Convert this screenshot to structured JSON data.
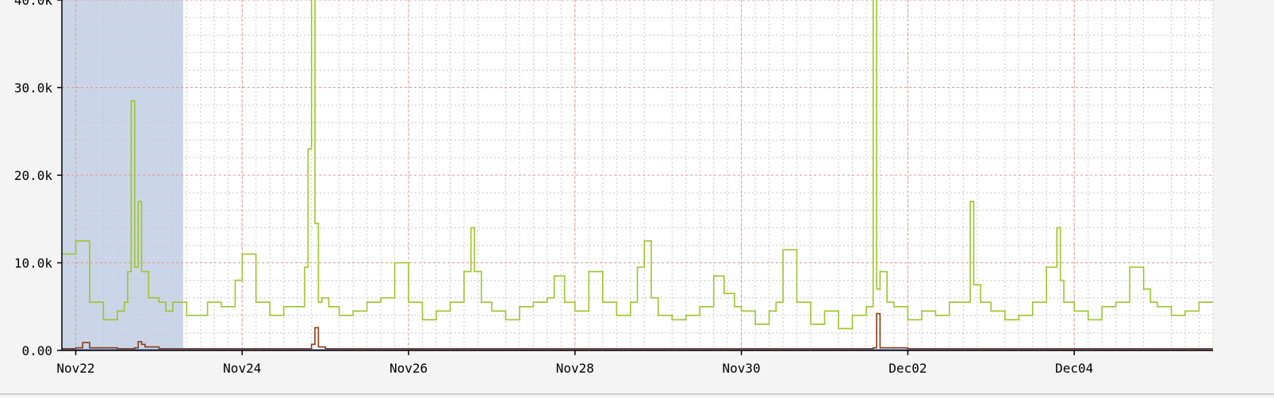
{
  "chart_data": {
    "type": "line",
    "title": "",
    "xlabel": "",
    "ylabel": "",
    "x_tick_labels": [
      "Nov22",
      "Nov24",
      "Nov26",
      "Nov28",
      "Nov30",
      "Dec02",
      "Dec04"
    ],
    "y_tick_labels": [
      "0.00",
      "10.0k",
      "20.0k",
      "30.0k",
      "40.0k"
    ],
    "xlim": [
      "Nov21 20:00",
      "Dec05 16:00"
    ],
    "ylim": [
      0,
      40000
    ],
    "grid": true,
    "highlighted_range": [
      "Nov21 20:00",
      "Nov23 07:00"
    ],
    "colors": {
      "series_green": "#9dc42b",
      "series_brown": "#8b3a10",
      "series_blue": "#4a6fc8",
      "highlight": "#cbd5e8",
      "major_grid": "#e89090",
      "minor_grid": "#c8c8c8"
    },
    "series": [
      {
        "color": "#9dc42b",
        "x": [
          "Nov21 20:00",
          "Nov22 00:00",
          "Nov22 04:00",
          "Nov22 08:00",
          "Nov22 12:00",
          "Nov22 14:00",
          "Nov22 15:00",
          "Nov22 16:00",
          "Nov22 17:00",
          "Nov22 18:00",
          "Nov22 19:00",
          "Nov22 21:00",
          "Nov23 00:00",
          "Nov23 02:00",
          "Nov23 04:00",
          "Nov23 08:00",
          "Nov23 11:00",
          "Nov23 14:00",
          "Nov23 18:00",
          "Nov23 22:00",
          "Nov24 00:00",
          "Nov24 04:00",
          "Nov24 08:00",
          "Nov24 12:00",
          "Nov24 16:00",
          "Nov24 18:00",
          "Nov24 19:00",
          "Nov24 20:00",
          "Nov24 21:00",
          "Nov24 22:00",
          "Nov24 23:00",
          "Nov25 01:00",
          "Nov25 04:00",
          "Nov25 08:00",
          "Nov25 12:00",
          "Nov25 16:00",
          "Nov25 20:00",
          "Nov26 00:00",
          "Nov26 04:00",
          "Nov26 08:00",
          "Nov26 12:00",
          "Nov26 16:00",
          "Nov26 18:00",
          "Nov26 19:00",
          "Nov26 21:00",
          "Nov27 00:00",
          "Nov27 04:00",
          "Nov27 08:00",
          "Nov27 12:00",
          "Nov27 16:00",
          "Nov27 18:00",
          "Nov27 21:00",
          "Nov28 00:00",
          "Nov28 04:00",
          "Nov28 08:00",
          "Nov28 12:00",
          "Nov28 16:00",
          "Nov28 18:00",
          "Nov28 20:00",
          "Nov28 22:00",
          "Nov29 00:00",
          "Nov29 04:00",
          "Nov29 08:00",
          "Nov29 12:00",
          "Nov29 16:00",
          "Nov29 19:00",
          "Nov29 22:00",
          "Nov30 00:00",
          "Nov30 04:00",
          "Nov30 08:00",
          "Nov30 10:00",
          "Nov30 12:00",
          "Nov30 16:00",
          "Nov30 20:00",
          "Dec01 00:00",
          "Dec01 04:00",
          "Dec01 08:00",
          "Dec01 12:00",
          "Dec01 14:00",
          "Dec01 15:00",
          "Dec01 16:00",
          "Dec01 18:00",
          "Dec01 20:00",
          "Dec02 00:00",
          "Dec02 04:00",
          "Dec02 08:00",
          "Dec02 12:00",
          "Dec02 16:00",
          "Dec02 18:00",
          "Dec02 19:00",
          "Dec02 21:00",
          "Dec03 00:00",
          "Dec03 04:00",
          "Dec03 08:00",
          "Dec03 12:00",
          "Dec03 16:00",
          "Dec03 19:00",
          "Dec03 20:00",
          "Dec03 21:00",
          "Dec04 00:00",
          "Dec04 04:00",
          "Dec04 08:00",
          "Dec04 12:00",
          "Dec04 16:00",
          "Dec04 20:00",
          "Dec04 22:00",
          "Dec05 00:00",
          "Dec05 04:00",
          "Dec05 08:00",
          "Dec05 12:00",
          "Dec05 16:00"
        ],
        "y": [
          11000,
          12500,
          5500,
          3500,
          4500,
          5500,
          9000,
          28500,
          9500,
          17000,
          9000,
          6000,
          5500,
          4500,
          5500,
          4000,
          4000,
          5500,
          5000,
          8000,
          11000,
          5500,
          4000,
          5000,
          5000,
          9500,
          23000,
          41000,
          14500,
          5500,
          6000,
          5000,
          4000,
          4500,
          5500,
          6000,
          10000,
          5500,
          3500,
          4500,
          5500,
          9000,
          14000,
          9000,
          5500,
          4500,
          3500,
          5000,
          5500,
          6000,
          8500,
          5500,
          4500,
          9000,
          5500,
          4000,
          5500,
          9500,
          12500,
          6000,
          4000,
          3500,
          4000,
          5000,
          8500,
          6500,
          5000,
          4500,
          3000,
          4500,
          5500,
          11500,
          5500,
          3000,
          4500,
          2500,
          4000,
          5000,
          40500,
          7000,
          9000,
          5500,
          5000,
          3500,
          4500,
          4000,
          5500,
          5500,
          17000,
          7500,
          5500,
          4500,
          3500,
          4000,
          5500,
          9500,
          14000,
          8000,
          5500,
          4500,
          3500,
          5000,
          5500,
          9500,
          7000,
          5500,
          5000,
          4000,
          4500,
          5500,
          5500
        ]
      },
      {
        "color": "#8b3a10",
        "x": [
          "Nov21 20:00",
          "Nov22 00:00",
          "Nov22 02:00",
          "Nov22 04:00",
          "Nov22 12:00",
          "Nov22 17:00",
          "Nov22 18:00",
          "Nov22 19:00",
          "Nov22 20:00",
          "Nov23 00:00",
          "Nov24 00:00",
          "Nov24 20:00",
          "Nov24 21:00",
          "Nov24 22:00",
          "Nov25 00:00",
          "Nov26 00:00",
          "Nov27 00:00",
          "Nov28 00:00",
          "Nov29 00:00",
          "Nov30 00:00",
          "Dec01 00:00",
          "Dec01 14:00",
          "Dec01 15:00",
          "Dec01 16:00",
          "Dec02 00:00",
          "Dec03 00:00",
          "Dec04 00:00",
          "Dec05 00:00",
          "Dec05 16:00"
        ],
        "y": [
          200,
          300,
          900,
          300,
          200,
          300,
          1000,
          700,
          400,
          200,
          200,
          700,
          2600,
          400,
          200,
          200,
          200,
          200,
          200,
          200,
          200,
          300,
          4200,
          300,
          200,
          200,
          200,
          200,
          200
        ]
      },
      {
        "color": "#4a6fc8",
        "x": [
          "Nov21 20:00",
          "Dec05 16:00"
        ],
        "y": [
          50,
          50
        ]
      }
    ]
  }
}
